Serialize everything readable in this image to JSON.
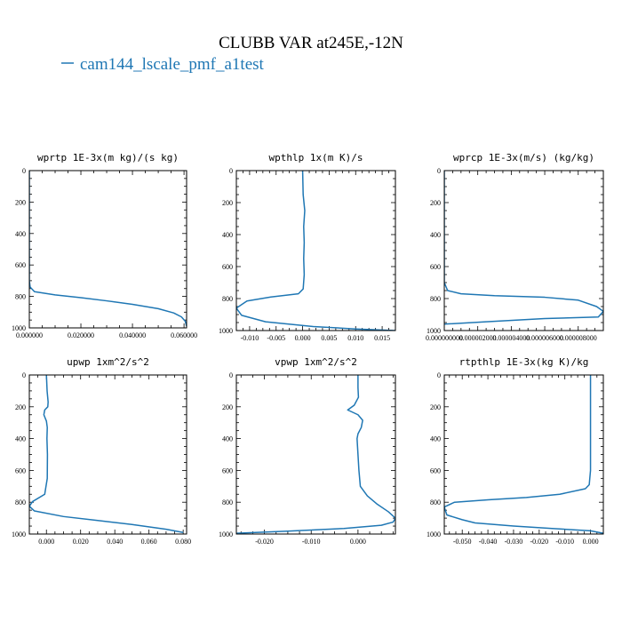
{
  "figure": {
    "title": "CLUBB VAR at245E,-12N",
    "legend_label": "cam144_lscale_pmf_a1test",
    "line_color": "#1f77b4"
  },
  "chart_data": [
    {
      "type": "line",
      "title": "wprtp  1E-3x(m kg)/(s kg)",
      "xlim": [
        0,
        0.061
      ],
      "ylim": [
        1000,
        0
      ],
      "xticks": [
        0,
        0.02,
        0.04,
        0.06
      ],
      "xticklabels": [
        "0.000000",
        "0.020000",
        "0.040000",
        "0.060000"
      ],
      "yticks": [
        0,
        200,
        400,
        600,
        800,
        1000
      ],
      "yticklabels": [
        "0",
        "200",
        "400",
        "600",
        "800",
        "1000"
      ],
      "series": [
        {
          "x": [
            0,
            0,
            0,
            0,
            0,
            0,
            0,
            0,
            0.0003,
            0.002,
            0.01,
            0.02,
            0.03,
            0.04,
            0.05,
            0.056,
            0.059,
            0.0605,
            0.061
          ],
          "y": [
            0,
            100,
            200,
            300,
            400,
            500,
            600,
            700,
            740,
            770,
            790,
            808,
            828,
            850,
            878,
            905,
            930,
            958,
            990
          ]
        }
      ]
    },
    {
      "type": "line",
      "title": "wpthlp  1x(m K)/s",
      "xlim": [
        -0.0125,
        0.0175
      ],
      "ylim": [
        1000,
        0
      ],
      "xticks": [
        -0.01,
        -0.005,
        0,
        0.005,
        0.01,
        0.015
      ],
      "xticklabels": [
        "-0.010",
        "-0.005",
        "0.000",
        "0.005",
        "0.010",
        "0.015"
      ],
      "yticks": [
        0,
        200,
        400,
        600,
        800,
        1000
      ],
      "yticklabels": [
        "0",
        "200",
        "400",
        "600",
        "800",
        "1000"
      ],
      "series": [
        {
          "x": [
            0,
            0.0001,
            0.0004,
            0.0002,
            0.0003,
            0.0002,
            0.0003,
            0.0001,
            -0.0008,
            -0.006,
            -0.0105,
            -0.0125,
            -0.0115,
            -0.007,
            0.002,
            0.01,
            0.0175
          ],
          "y": [
            0,
            150,
            250,
            350,
            450,
            550,
            650,
            740,
            770,
            790,
            815,
            860,
            905,
            945,
            975,
            990,
            1000
          ]
        }
      ]
    },
    {
      "type": "line",
      "title": "wprcp  1E-3x(m/s) (kg/kg)",
      "xlim": [
        0,
        9.5e-06
      ],
      "ylim": [
        1000,
        0
      ],
      "xticks": [
        0,
        2e-06,
        4e-06,
        6e-06,
        8e-06
      ],
      "xticklabels": [
        "0.000000000",
        "0.000002000",
        "0.000004000",
        "0.000006000",
        "0.000008000"
      ],
      "yticks": [
        0,
        200,
        400,
        600,
        800,
        1000
      ],
      "yticklabels": [
        "0",
        "200",
        "400",
        "600",
        "800",
        "1000"
      ],
      "series": [
        {
          "x": [
            0,
            0,
            0,
            0,
            0,
            0,
            0,
            0,
            2e-07,
            1e-06,
            3e-06,
            6e-06,
            8e-06,
            9.1e-06,
            9.5e-06,
            9.2e-06,
            6e-06,
            2.5e-06,
            0
          ],
          "y": [
            0,
            100,
            200,
            300,
            400,
            500,
            600,
            700,
            750,
            770,
            782,
            792,
            810,
            850,
            880,
            915,
            925,
            945,
            960
          ]
        }
      ]
    },
    {
      "type": "line",
      "title": "upwp  1xm^2/s^2",
      "xlim": [
        -0.01,
        0.082
      ],
      "ylim": [
        1000,
        0
      ],
      "xticks": [
        0,
        0.02,
        0.04,
        0.06,
        0.08
      ],
      "xticklabels": [
        "0.000",
        "0.020",
        "0.040",
        "0.060",
        "0.080"
      ],
      "yticks": [
        0,
        200,
        400,
        600,
        800,
        1000
      ],
      "yticklabels": [
        "0",
        "200",
        "400",
        "600",
        "800",
        "1000"
      ],
      "series": [
        {
          "x": [
            0,
            0.0004,
            0.001,
            0.0008,
            -0.001,
            -0.0015,
            0,
            0.0005,
            0.0003,
            0.0006,
            0.0005,
            -0.001,
            -0.008,
            -0.01,
            -0.007,
            0.01,
            0.03,
            0.05,
            0.07,
            0.08
          ],
          "y": [
            0,
            100,
            170,
            200,
            220,
            250,
            290,
            330,
            400,
            500,
            650,
            750,
            795,
            825,
            855,
            890,
            915,
            940,
            970,
            990
          ]
        }
      ]
    },
    {
      "type": "line",
      "title": "vpwp  1xm^2/s^2",
      "xlim": [
        -0.026,
        0.008
      ],
      "ylim": [
        1000,
        0
      ],
      "xticks": [
        -0.02,
        -0.01,
        0
      ],
      "xticklabels": [
        "-0.020",
        "-0.010",
        "0.000"
      ],
      "yticks": [
        0,
        200,
        400,
        600,
        800,
        1000
      ],
      "yticklabels": [
        "0",
        "200",
        "400",
        "600",
        "800",
        "1000"
      ],
      "series": [
        {
          "x": [
            0,
            0,
            0.0001,
            -0.0008,
            -0.0022,
            0,
            0.001,
            0.0007,
            0,
            -0.0002,
            0,
            0.0002,
            0.0005,
            0.002,
            0.004,
            0.0065,
            0.008,
            0.0075,
            0.005,
            -0.003,
            -0.015,
            -0.026
          ],
          "y": [
            0,
            80,
            140,
            190,
            220,
            250,
            285,
            330,
            370,
            400,
            500,
            600,
            700,
            760,
            810,
            860,
            900,
            925,
            945,
            965,
            982,
            995
          ]
        }
      ]
    },
    {
      "type": "line",
      "title": "rtpthlp  1E-3x(kg K)/kg",
      "xlim": [
        -0.057,
        0.005
      ],
      "ylim": [
        1000,
        0
      ],
      "xticks": [
        -0.05,
        -0.04,
        -0.03,
        -0.02,
        -0.01,
        0
      ],
      "xticklabels": [
        "-0.050",
        "-0.040",
        "-0.030",
        "-0.020",
        "-0.010",
        "0.000"
      ],
      "yticks": [
        0,
        200,
        400,
        600,
        800,
        1000
      ],
      "yticklabels": [
        "0",
        "200",
        "400",
        "600",
        "800",
        "1000"
      ],
      "series": [
        {
          "x": [
            0,
            0,
            0,
            0,
            0,
            -0.0005,
            -0.002,
            -0.012,
            -0.025,
            -0.04,
            -0.053,
            -0.057,
            -0.056,
            -0.05,
            -0.045,
            -0.03,
            -0.015,
            0,
            0.005
          ],
          "y": [
            0,
            150,
            300,
            450,
            600,
            690,
            715,
            750,
            770,
            785,
            800,
            830,
            880,
            910,
            930,
            950,
            965,
            980,
            995
          ]
        }
      ]
    }
  ]
}
